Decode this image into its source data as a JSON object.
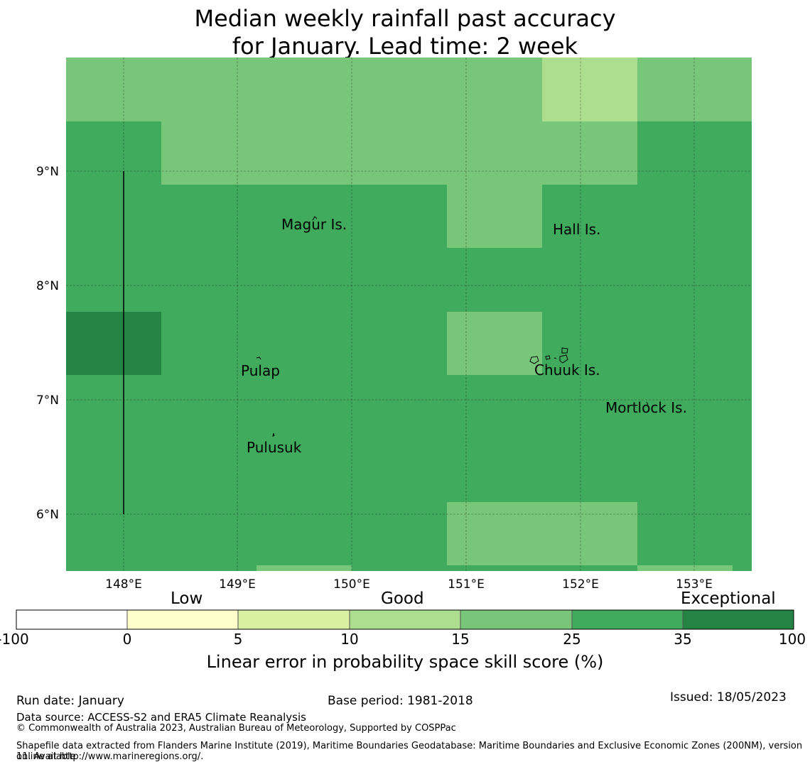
{
  "title": {
    "line1": "Median weekly rainfall past accuracy",
    "line2": "for January. Lead time: 2 week"
  },
  "map": {
    "lon_range": [
      147.5,
      153.5
    ],
    "lat_range": [
      5.5,
      10.0
    ],
    "x_ticks": [
      "148°E",
      "149°E",
      "150°E",
      "151°E",
      "152°E",
      "153°E"
    ],
    "y_ticks": [
      "9°N",
      "8°N",
      "7°N",
      "6°N"
    ],
    "places": [
      "Magur Is.",
      "Hall Is.",
      "Pulap",
      "Chuuk Is.",
      "Mortlock Is.",
      "Pulusuk"
    ]
  },
  "legend": {
    "categories": [
      "Low",
      "Good",
      "Exceptional"
    ],
    "tick_labels": [
      "-100",
      "0",
      "5",
      "10",
      "15",
      "25",
      "35",
      "100"
    ],
    "colors": [
      "#ffffff",
      "#ffffcc",
      "#d9f0a3",
      "#addd8e",
      "#78c679",
      "#41ab5d",
      "#238443"
    ],
    "title": "Linear error in probability space skill score (%)"
  },
  "footer": {
    "run_date": "Run date: January",
    "base_period": "Base period: 1981-2018",
    "issued": "Issued: 18/05/2023",
    "source": "Data source: ACCESS-S2 and ERA5 Climate Reanalysis",
    "copyright": "© Commonwealth of Australia 2023, Australian Bureau of Meteorology, Supported by COSPPac",
    "shapefile_line1": "Shapefile data extracted from Flanders Marine Institute (2019), Maritime Boundaries Geodatabase: Maritime Boundaries and Exclusive Economic Zones (200NM), version 11. Available",
    "shapefile_line2": "online at http://www.marineregions.org/."
  }
}
